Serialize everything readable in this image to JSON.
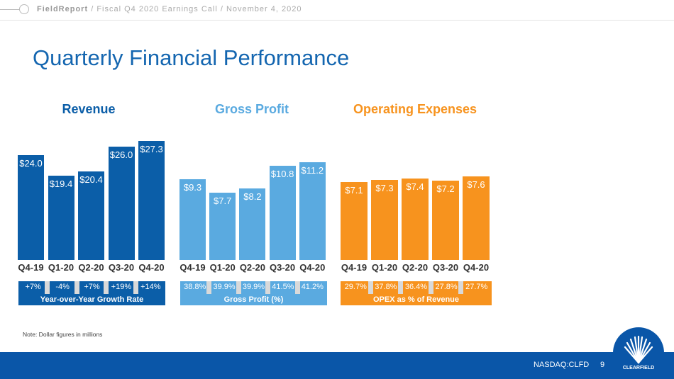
{
  "header": {
    "brand": "FieldReport",
    "separator": "/",
    "subtitle": "Fiscal Q4 2020 Earnings Call / November 4, 2020"
  },
  "title": "Quarterly Financial Performance",
  "chart_data": [
    {
      "type": "bar",
      "title": "Revenue",
      "categories": [
        "Q4-19",
        "Q1-20",
        "Q2-20",
        "Q3-20",
        "Q4-20"
      ],
      "values": [
        24.0,
        19.4,
        20.4,
        26.0,
        27.3
      ],
      "labels": [
        "$24.0",
        "$19.4",
        "$20.4",
        "$26.0",
        "$27.3"
      ],
      "color": "#0b5ea8",
      "title_color": "#0b5ea8",
      "sub_values": [
        "+7%",
        "-4%",
        "+7%",
        "+19%",
        "+14%"
      ],
      "sub_label": "Year-over-Year Growth Rate"
    },
    {
      "type": "bar",
      "title": "Gross Profit",
      "categories": [
        "Q4-19",
        "Q1-20",
        "Q2-20",
        "Q3-20",
        "Q4-20"
      ],
      "values": [
        9.3,
        7.7,
        8.2,
        10.8,
        11.2
      ],
      "labels": [
        "$9.3",
        "$7.7",
        "$8.2",
        "$10.8",
        "$11.2"
      ],
      "color": "#5aaae0",
      "title_color": "#5aaae0",
      "sub_values": [
        "38.8%",
        "39.9%",
        "39.9%",
        "41.5%",
        "41.2%"
      ],
      "sub_label": "Gross Profit (%)"
    },
    {
      "type": "bar",
      "title": "Operating Expenses",
      "categories": [
        "Q4-19",
        "Q1-20",
        "Q2-20",
        "Q3-20",
        "Q4-20"
      ],
      "values": [
        7.1,
        7.3,
        7.4,
        7.2,
        7.6
      ],
      "labels": [
        "$7.1",
        "$7.3",
        "$7.4",
        "$7.2",
        "$7.6"
      ],
      "color": "#f7931e",
      "title_color": "#f7931e",
      "sub_values": [
        "29.7%",
        "37.8%",
        "36.4%",
        "27.8%",
        "27.7%"
      ],
      "sub_label": "OPEX as % of Revenue"
    }
  ],
  "note": "Note: Dollar figures in millions",
  "footer": {
    "ticker": "NASDAQ:CLFD",
    "page": "9",
    "logo_text": "CLEARFIELD"
  }
}
